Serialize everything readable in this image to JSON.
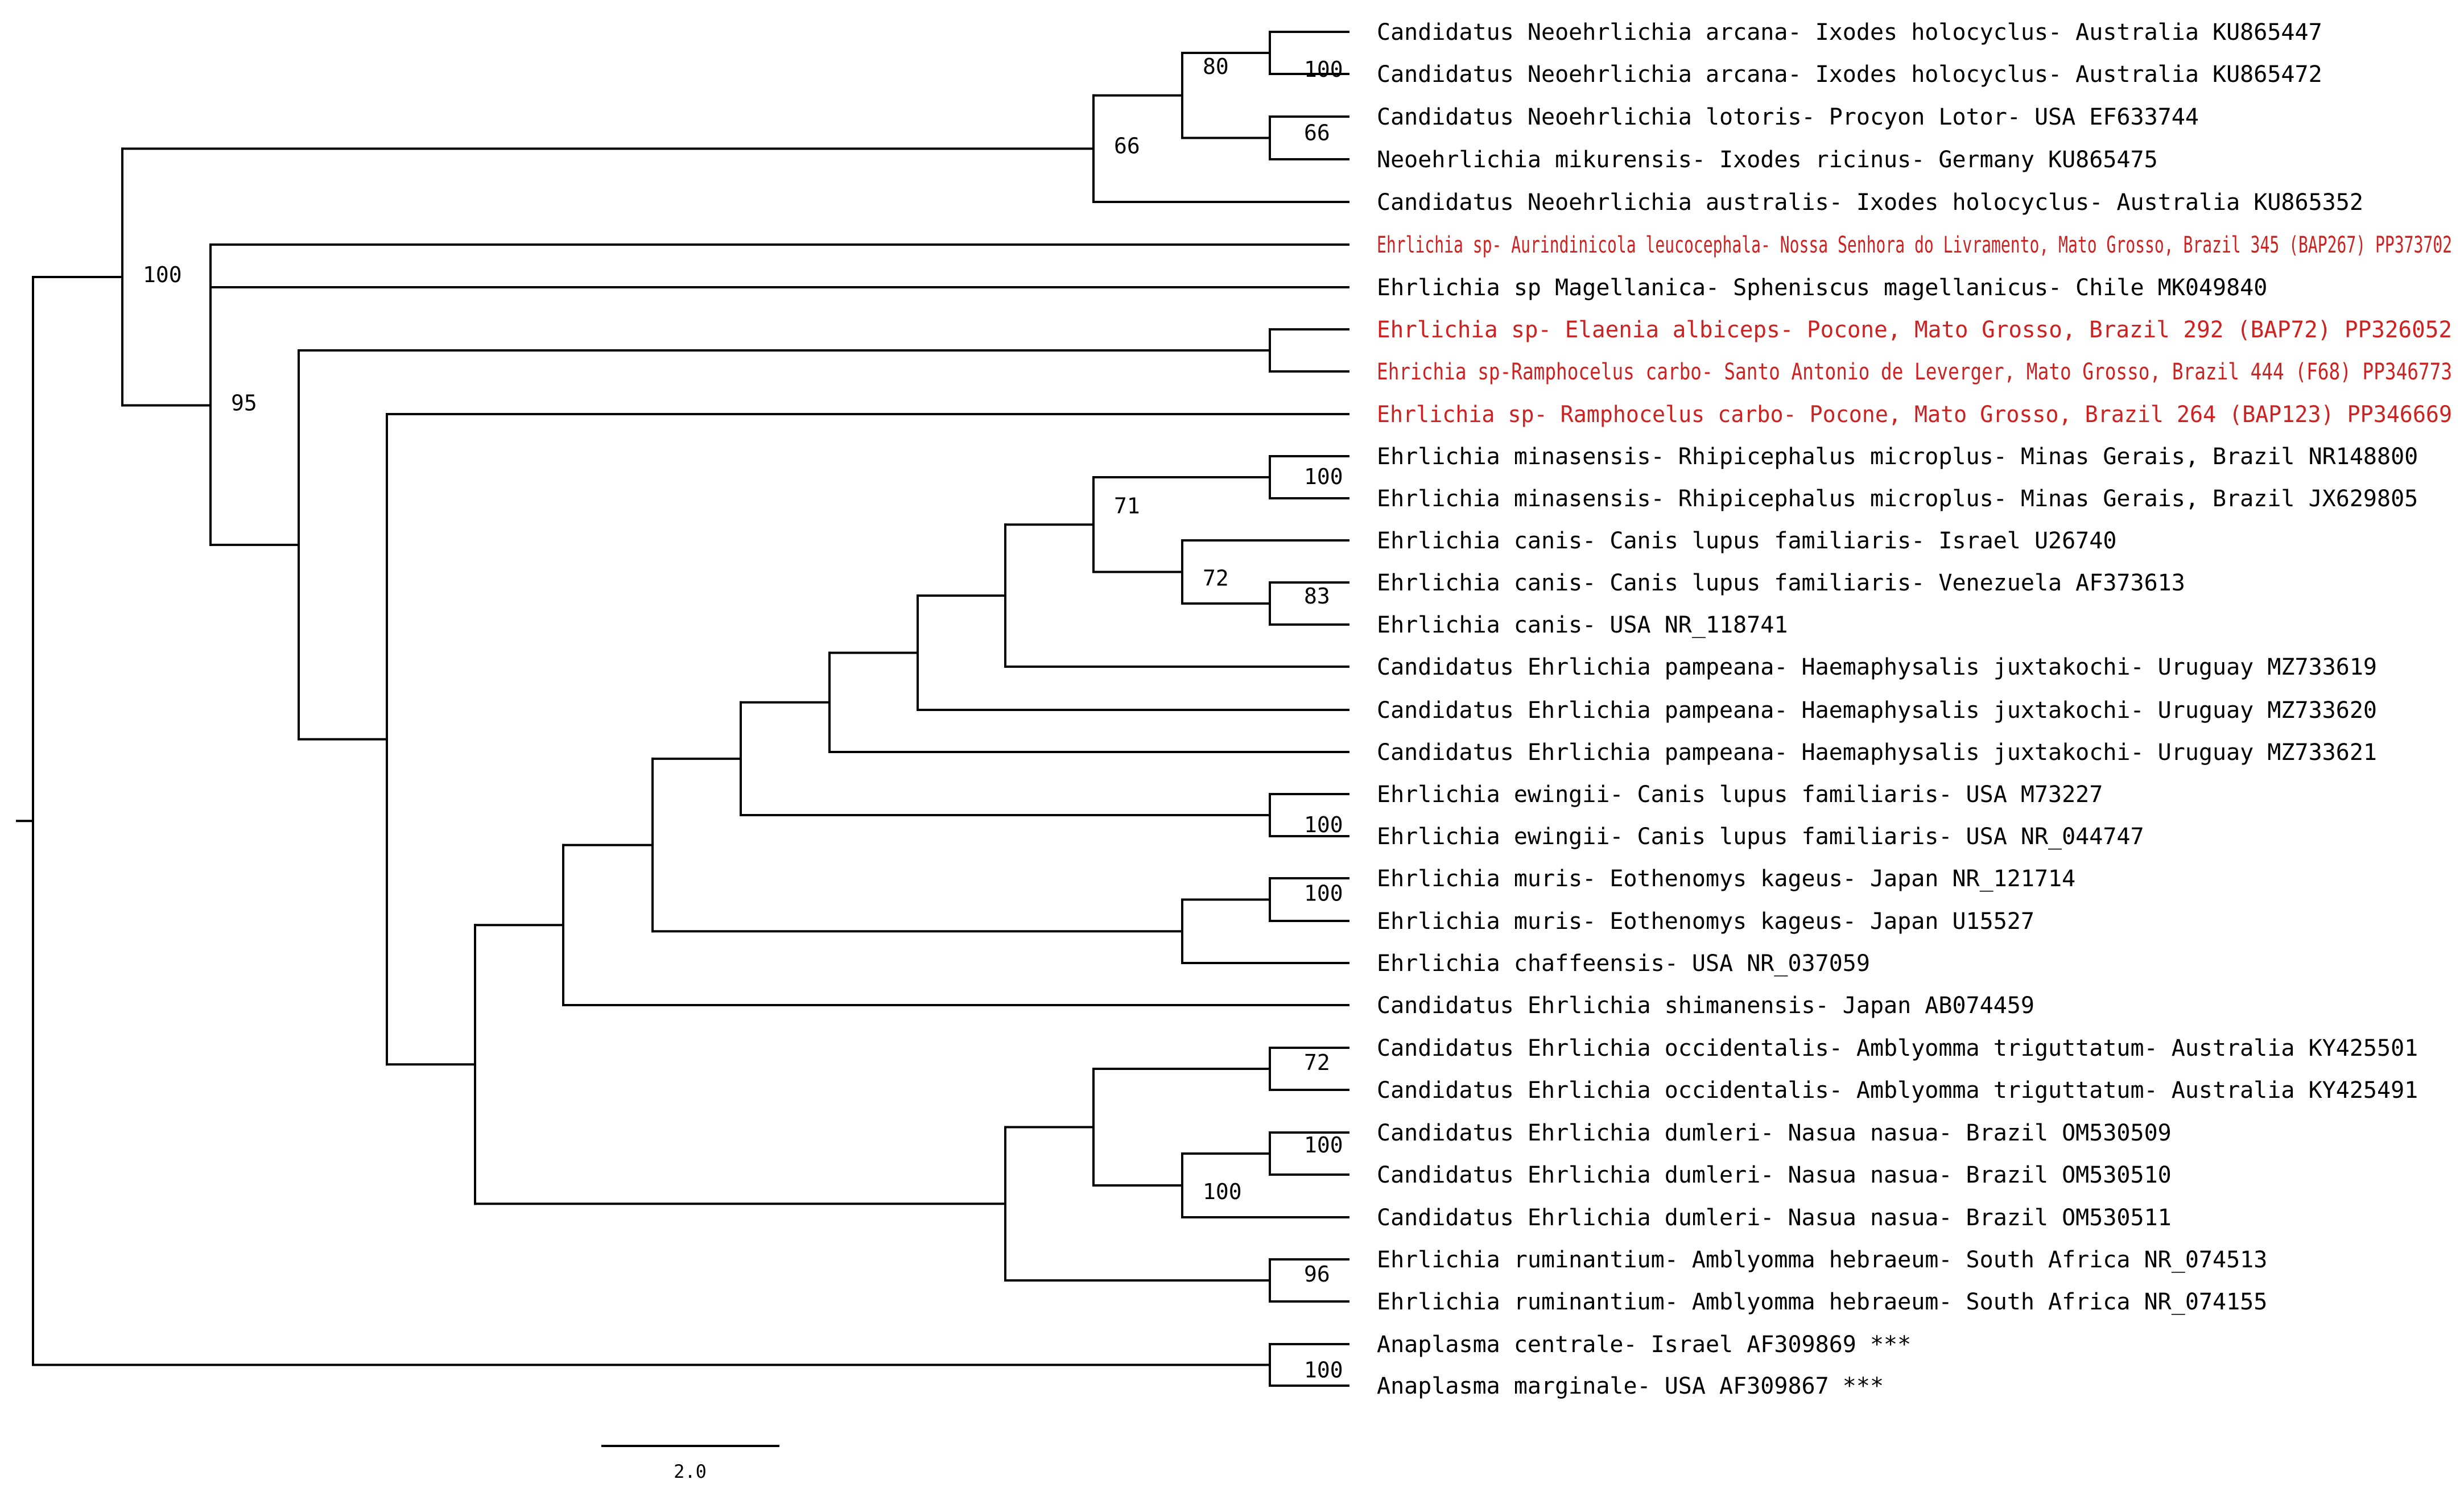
{
  "tree": {
    "leaf_color": "#000000",
    "highlight_color": "#cc2222",
    "leaves": [
      {
        "label": "Candidatus Neoehrlichia arcana- Ixodes holocyclus- Australia KU865447",
        "highlight": false
      },
      {
        "label": "Candidatus Neoehrlichia arcana- Ixodes holocyclus- Australia KU865472",
        "highlight": false
      },
      {
        "label": "Candidatus Neoehrlichia lotoris- Procyon Lotor- USA EF633744",
        "highlight": false
      },
      {
        "label": "Neoehrlichia mikurensis- Ixodes ricinus- Germany KU865475",
        "highlight": false
      },
      {
        "label": "Candidatus Neoehrlichia australis- Ixodes holocyclus- Australia KU865352",
        "highlight": false
      },
      {
        "label": "Ehrlichia sp- Aurindinicola leucocephala- Nossa Senhora do Livramento, Mato Grosso, Brazil 345 (BAP267) PP373702",
        "highlight": true
      },
      {
        "label": "Ehrlichia sp Magellanica- Spheniscus magellanicus- Chile MK049840",
        "highlight": false
      },
      {
        "label": "Ehrlichia sp- Elaenia albiceps- Pocone, Mato Grosso, Brazil 292 (BAP72) PP326052",
        "highlight": true
      },
      {
        "label": "Ehrichia sp-Ramphocelus carbo- Santo Antonio de Leverger, Mato Grosso, Brazil 444 (F68) PP346773",
        "highlight": true
      },
      {
        "label": "Ehrlichia sp- Ramphocelus carbo- Pocone, Mato Grosso, Brazil 264 (BAP123) PP346669",
        "highlight": true
      },
      {
        "label": "Ehrlichia minasensis- Rhipicephalus microplus- Minas Gerais, Brazil NR148800",
        "highlight": false
      },
      {
        "label": "Ehrlichia minasensis- Rhipicephalus microplus- Minas Gerais, Brazil JX629805",
        "highlight": false
      },
      {
        "label": "Ehrlichia canis- Canis lupus familiaris- Israel U26740",
        "highlight": false
      },
      {
        "label": "Ehrlichia canis- Canis lupus familiaris- Venezuela AF373613",
        "highlight": false
      },
      {
        "label": "Ehrlichia canis- USA NR_118741",
        "highlight": false
      },
      {
        "label": "Candidatus Ehrlichia pampeana- Haemaphysalis juxtakochi- Uruguay MZ733619",
        "highlight": false
      },
      {
        "label": "Candidatus Ehrlichia pampeana- Haemaphysalis juxtakochi- Uruguay MZ733620",
        "highlight": false
      },
      {
        "label": "Candidatus Ehrlichia pampeana-  Haemaphysalis juxtakochi- Uruguay MZ733621",
        "highlight": false
      },
      {
        "label": "Ehrlichia ewingii- Canis lupus familiaris- USA M73227",
        "highlight": false
      },
      {
        "label": "Ehrlichia ewingii- Canis lupus familiaris- USA NR_044747",
        "highlight": false
      },
      {
        "label": "Ehrlichia muris- Eothenomys kageus- Japan NR_121714",
        "highlight": false
      },
      {
        "label": "Ehrlichia muris- Eothenomys kageus- Japan U15527",
        "highlight": false
      },
      {
        "label": "Ehrlichia chaffeensis- USA NR_037059",
        "highlight": false
      },
      {
        "label": "Candidatus Ehrlichia shimanensis- Japan AB074459",
        "highlight": false
      },
      {
        "label": "Candidatus Ehrlichia occidentalis- Amblyomma triguttatum- Australia KY425501",
        "highlight": false
      },
      {
        "label": "Candidatus Ehrlichia occidentalis- Amblyomma triguttatum- Australia KY425491",
        "highlight": false
      },
      {
        "label": "Candidatus Ehrlichia dumleri- Nasua nasua- Brazil OM530509",
        "highlight": false
      },
      {
        "label": "Candidatus Ehrlichia dumleri- Nasua nasua- Brazil OM530510",
        "highlight": false
      },
      {
        "label": "Candidatus Ehrlichia dumleri- Nasua nasua- Brazil OM530511",
        "highlight": false
      },
      {
        "label": "Ehrlichia ruminantium- Amblyomma hebraeum- South Africa NR_074513",
        "highlight": false
      },
      {
        "label": "Ehrlichia ruminantium- Amblyomma hebraeum- South Africa NR_074155",
        "highlight": false
      },
      {
        "label": "Anaplasma centrale- Israel AF309869 ***",
        "highlight": false
      },
      {
        "label": "Anaplasma marginale- USA AF309867 ***",
        "highlight": false
      }
    ],
    "support_values": [
      "100",
      "80",
      "66",
      "66",
      "100",
      "95",
      "100",
      "71",
      "72",
      "83",
      "100",
      "100",
      "72",
      "100",
      "100",
      "96",
      "100"
    ],
    "scale_label": "2.0"
  }
}
